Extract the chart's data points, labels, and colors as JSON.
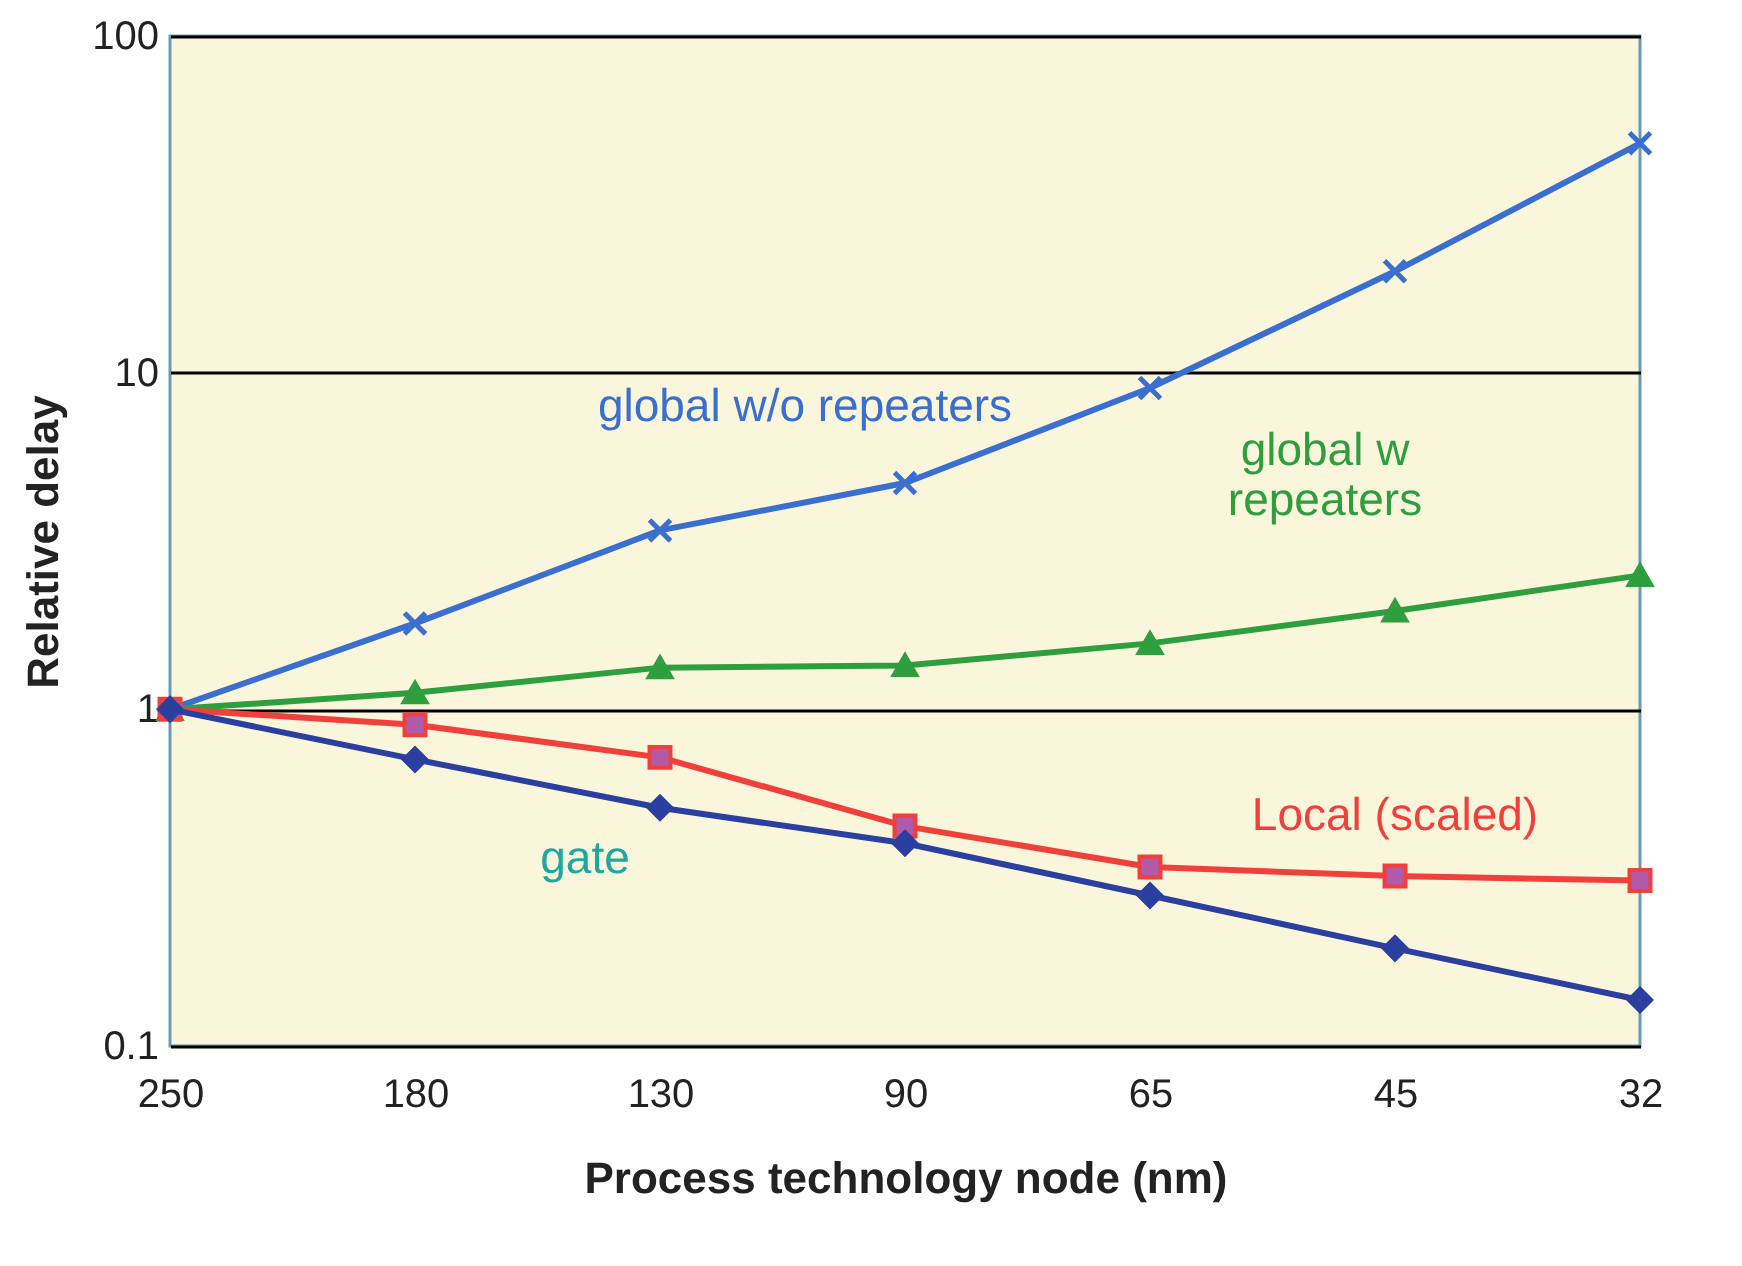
{
  "chart_data": {
    "type": "line",
    "xlabel": "Process technology node (nm)",
    "ylabel": "Relative delay",
    "categories": [
      "250",
      "180",
      "130",
      "90",
      "65",
      "45",
      "32"
    ],
    "log": "y",
    "ylim": [
      0.1,
      100
    ],
    "yticks": [
      0.1,
      1,
      10,
      100
    ],
    "grid": "y",
    "series": [
      {
        "name": "global w/o repeaters",
        "color": "#3a6fd0",
        "marker": "cross",
        "values": [
          1,
          1.8,
          3.4,
          4.7,
          9,
          20,
          48
        ]
      },
      {
        "name": "global w repeaters",
        "color": "#2e9e3e",
        "marker": "triangle",
        "values": [
          1,
          1.12,
          1.33,
          1.35,
          1.57,
          1.96,
          2.5
        ]
      },
      {
        "name": "Local (scaled)",
        "color": "#f0403c",
        "marker": "square",
        "values": [
          1,
          0.9,
          0.72,
          0.45,
          0.34,
          0.32,
          0.31
        ]
      },
      {
        "name": "gate",
        "color": "#2a3f9e",
        "marker": "diamond",
        "values": [
          1,
          0.71,
          0.51,
          0.4,
          0.28,
          0.195,
          0.137
        ]
      }
    ]
  }
}
